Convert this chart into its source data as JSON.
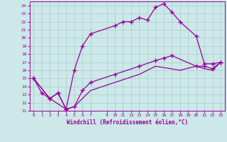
{
  "xlabel": "Windchill (Refroidissement éolien,°C)",
  "bg_color": "#cce8e8",
  "grid_color": "#aacccc",
  "line_color": "#990099",
  "spine_color": "#990099",
  "xlim": [
    -0.5,
    23.5
  ],
  "ylim": [
    11,
    24.5
  ],
  "xticks": [
    0,
    1,
    2,
    3,
    4,
    5,
    6,
    7,
    9,
    10,
    11,
    12,
    13,
    14,
    15,
    16,
    17,
    18,
    19,
    20,
    21,
    22,
    23
  ],
  "yticks": [
    11,
    12,
    13,
    14,
    15,
    16,
    17,
    18,
    19,
    20,
    21,
    22,
    23,
    24
  ],
  "series1_x": [
    0,
    1,
    2,
    3,
    4,
    5,
    6,
    7,
    10,
    11,
    12,
    13,
    14,
    15,
    16,
    17,
    18,
    20,
    21,
    22,
    23
  ],
  "series1_y": [
    15,
    13.2,
    12.5,
    13.2,
    11.2,
    16.0,
    19.0,
    20.5,
    21.5,
    22.0,
    22.0,
    22.5,
    22.2,
    23.8,
    24.2,
    23.2,
    22.0,
    20.2,
    16.8,
    16.8,
    17.0
  ],
  "series2_x": [
    0,
    2,
    3,
    4,
    5,
    6,
    7,
    10,
    13,
    15,
    16,
    17,
    20,
    21,
    22,
    23
  ],
  "series2_y": [
    15,
    12.5,
    13.2,
    11.2,
    11.5,
    13.5,
    14.5,
    15.5,
    16.5,
    17.2,
    17.5,
    17.8,
    16.5,
    16.5,
    16.2,
    17.0
  ],
  "series3_x": [
    0,
    2,
    4,
    5,
    7,
    10,
    13,
    15,
    18,
    20,
    21,
    22,
    23
  ],
  "series3_y": [
    15,
    12.5,
    11.2,
    11.5,
    13.5,
    14.5,
    15.5,
    16.5,
    16.0,
    16.5,
    16.2,
    16.0,
    17.0
  ]
}
